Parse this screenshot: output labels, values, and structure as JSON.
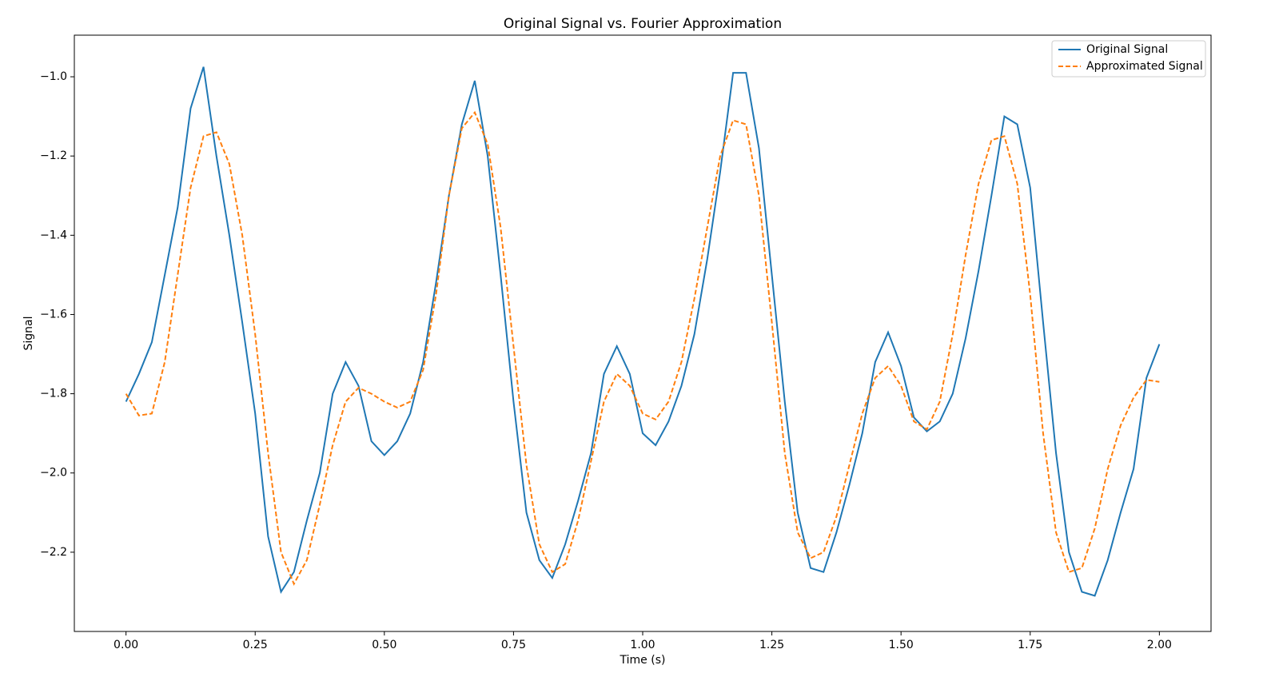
{
  "chart_data": {
    "type": "line",
    "title": "Original Signal vs. Fourier Approximation",
    "x_label": "Time (s)",
    "y_label": "Signal",
    "x": [
      0,
      0.025,
      0.05,
      0.075,
      0.1,
      0.125,
      0.15,
      0.175,
      0.2,
      0.225,
      0.25,
      0.275,
      0.3,
      0.325,
      0.35,
      0.375,
      0.4,
      0.425,
      0.45,
      0.475,
      0.5,
      0.525,
      0.55,
      0.575,
      0.6,
      0.625,
      0.65,
      0.675,
      0.7,
      0.725,
      0.75,
      0.775,
      0.8,
      0.825,
      0.85,
      0.875,
      0.9,
      0.925,
      0.95,
      0.975,
      1,
      1.025,
      1.05,
      1.075,
      1.1,
      1.125,
      1.15,
      1.175,
      1.2,
      1.225,
      1.25,
      1.275,
      1.3,
      1.325,
      1.35,
      1.375,
      1.4,
      1.425,
      1.45,
      1.475,
      1.5,
      1.525,
      1.55,
      1.575,
      1.6,
      1.625,
      1.65,
      1.675,
      1.7,
      1.725,
      1.75,
      1.775,
      1.8,
      1.825,
      1.85,
      1.875,
      1.9,
      1.925,
      1.95,
      1.975,
      2
    ],
    "series": [
      {
        "name": "Original Signal",
        "color": "#1f77b4",
        "linestyle": "solid",
        "values": [
          -1.82,
          -1.75,
          -1.67,
          -1.5,
          -1.33,
          -1.08,
          -0.975,
          -1.2,
          -1.4,
          -1.62,
          -1.85,
          -2.16,
          -2.3,
          -2.25,
          -2.12,
          -2.0,
          -1.8,
          -1.72,
          -1.78,
          -1.92,
          -1.955,
          -1.92,
          -1.85,
          -1.72,
          -1.52,
          -1.3,
          -1.12,
          -1.01,
          -1.2,
          -1.5,
          -1.82,
          -2.1,
          -2.22,
          -2.265,
          -2.18,
          -2.07,
          -1.95,
          -1.75,
          -1.68,
          -1.75,
          -1.9,
          -1.93,
          -1.87,
          -1.78,
          -1.65,
          -1.46,
          -1.24,
          -0.99,
          -0.99,
          -1.18,
          -1.5,
          -1.82,
          -2.1,
          -2.24,
          -2.25,
          -2.15,
          -2.03,
          -1.9,
          -1.72,
          -1.645,
          -1.73,
          -1.86,
          -1.895,
          -1.87,
          -1.8,
          -1.66,
          -1.49,
          -1.3,
          -1.1,
          -1.12,
          -1.28,
          -1.62,
          -1.95,
          -2.2,
          -2.3,
          -2.31,
          -2.22,
          -2.1,
          -1.99,
          -1.76,
          -1.675
        ]
      },
      {
        "name": "Approximated Signal",
        "color": "#ff7f0e",
        "linestyle": "dashed",
        "values": [
          -1.8,
          -1.855,
          -1.85,
          -1.72,
          -1.5,
          -1.28,
          -1.15,
          -1.14,
          -1.22,
          -1.4,
          -1.65,
          -1.95,
          -2.2,
          -2.28,
          -2.22,
          -2.08,
          -1.93,
          -1.82,
          -1.785,
          -1.8,
          -1.82,
          -1.835,
          -1.82,
          -1.74,
          -1.55,
          -1.3,
          -1.13,
          -1.09,
          -1.17,
          -1.38,
          -1.68,
          -1.98,
          -2.18,
          -2.25,
          -2.23,
          -2.12,
          -1.97,
          -1.82,
          -1.75,
          -1.78,
          -1.85,
          -1.865,
          -1.82,
          -1.72,
          -1.56,
          -1.38,
          -1.2,
          -1.11,
          -1.12,
          -1.3,
          -1.62,
          -1.95,
          -2.15,
          -2.215,
          -2.2,
          -2.11,
          -1.98,
          -1.85,
          -1.76,
          -1.73,
          -1.78,
          -1.87,
          -1.89,
          -1.82,
          -1.65,
          -1.45,
          -1.27,
          -1.16,
          -1.15,
          -1.27,
          -1.55,
          -1.9,
          -2.15,
          -2.25,
          -2.24,
          -2.14,
          -1.99,
          -1.88,
          -1.81,
          -1.765,
          -1.77
        ]
      }
    ],
    "xlim": [
      -0.1,
      2.1
    ],
    "ylim": [
      -2.4,
      -0.895
    ],
    "xticks": [
      {
        "value": 0,
        "label": "0.00"
      },
      {
        "value": 0.25,
        "label": "0.25"
      },
      {
        "value": 0.5,
        "label": "0.50"
      },
      {
        "value": 0.75,
        "label": "0.75"
      },
      {
        "value": 1,
        "label": "1.00"
      },
      {
        "value": 1.25,
        "label": "1.25"
      },
      {
        "value": 1.5,
        "label": "1.50"
      },
      {
        "value": 1.75,
        "label": "1.75"
      },
      {
        "value": 2,
        "label": "2.00"
      }
    ],
    "yticks": [
      {
        "value": -2.2,
        "label": "−2.2"
      },
      {
        "value": -2.0,
        "label": "−2.0"
      },
      {
        "value": -1.8,
        "label": "−1.8"
      },
      {
        "value": -1.6,
        "label": "−1.6"
      },
      {
        "value": -1.4,
        "label": "−1.4"
      },
      {
        "value": -1.2,
        "label": "−1.2"
      },
      {
        "value": -1.0,
        "label": "−1.0"
      }
    ],
    "grid": false,
    "legend_loc": "upper right"
  }
}
